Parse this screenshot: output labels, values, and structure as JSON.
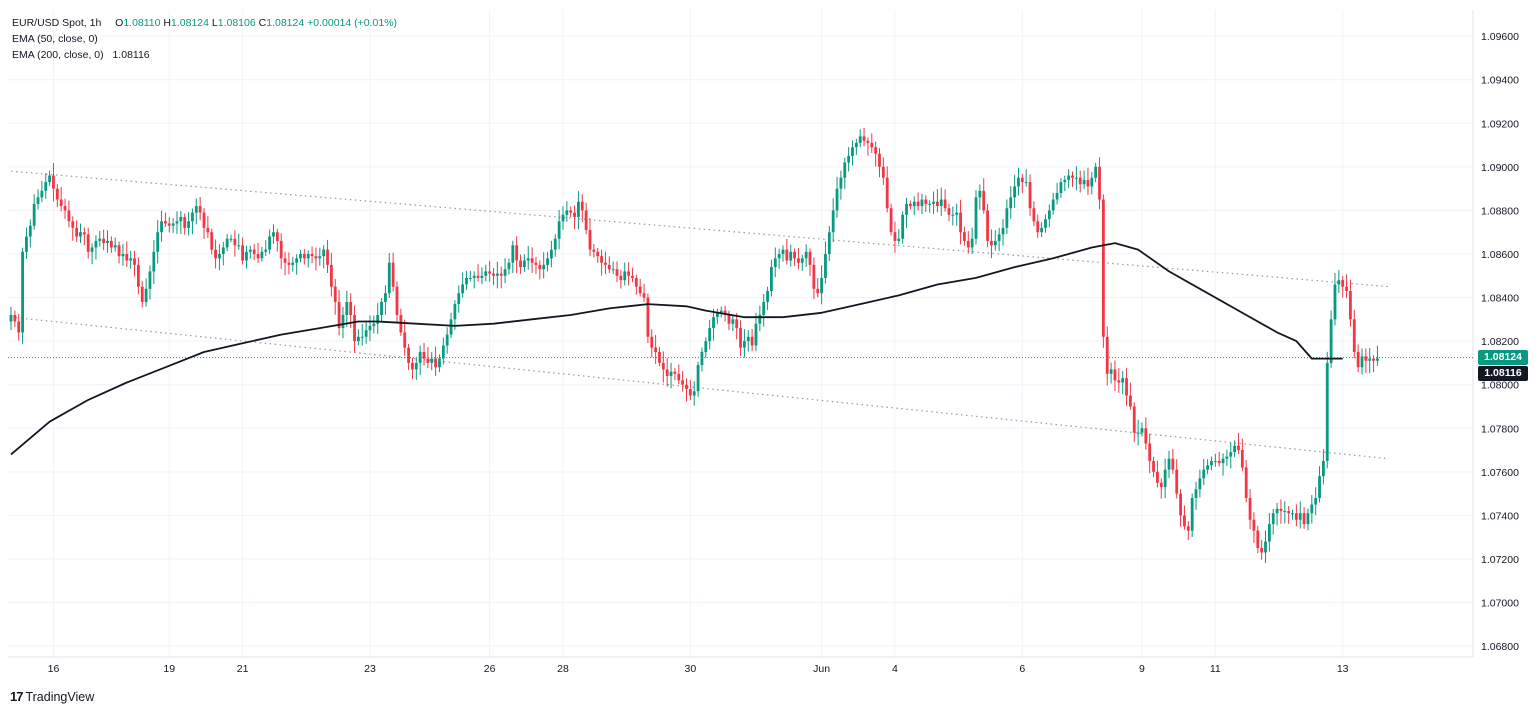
{
  "legend": {
    "symbol": "EUR/USD Spot, 1h",
    "o_label": "O",
    "o_value": "1.08110",
    "h_label": "H",
    "h_value": "1.08124",
    "l_label": "L",
    "l_value": "1.08106",
    "c_label": "C",
    "c_value": "1.08124",
    "change": "+0.00014 (+0.01%)",
    "ema50": "EMA (50, close, 0)",
    "ema200": "EMA (200, close, 0)",
    "ema200_value": "1.08116"
  },
  "price_tags": {
    "last": "1.08124",
    "ema200": "1.08116"
  },
  "brand": {
    "logo": "17",
    "name": "TradingView"
  },
  "colors": {
    "up": "#089981",
    "down": "#f23645",
    "ema": "#131722",
    "grid": "#f0f3fa",
    "last_line": "#089981",
    "channel": "#9598a1"
  },
  "chart_data": {
    "type": "candlestick",
    "title": "EUR/USD Spot, 1h",
    "interval": "1h",
    "grid": true,
    "y_axis": {
      "position": "right",
      "range": [
        1.0675,
        1.0972
      ],
      "ticks": [
        "1.09600",
        "1.09400",
        "1.09200",
        "1.09000",
        "1.08800",
        "1.08600",
        "1.08400",
        "1.08200",
        "1.08000",
        "1.07800",
        "1.07600",
        "1.07400",
        "1.07200",
        "1.07000",
        "1.06800"
      ]
    },
    "x_axis": {
      "ticks": [
        "16",
        "19",
        "21",
        "23",
        "26",
        "28",
        "30",
        "Jun",
        "4",
        "6",
        "9",
        "11",
        "13"
      ],
      "tick_index": [
        11,
        41,
        60,
        93,
        124,
        143,
        176,
        210,
        229,
        262,
        293,
        312,
        345
      ]
    },
    "last_price": 1.08124,
    "ema200_last": 1.08116,
    "channel_lines": [
      {
        "from": [
          0,
          1.0898
        ],
        "to": [
          357,
          1.0845
        ]
      },
      {
        "from": [
          0,
          1.0831
        ],
        "to": [
          357,
          1.0766
        ]
      }
    ],
    "closes": [
      1.0832,
      1.0829,
      1.0824,
      1.0861,
      1.0868,
      1.0873,
      1.0883,
      1.0886,
      1.0889,
      1.0893,
      1.0896,
      1.089,
      1.0885,
      1.0882,
      1.088,
      1.0875,
      1.0872,
      1.0868,
      1.087,
      1.0869,
      1.0861,
      1.0863,
      1.0866,
      1.0867,
      1.0865,
      1.0866,
      1.0863,
      1.0864,
      1.0859,
      1.086,
      1.0857,
      1.0858,
      1.0855,
      1.0845,
      1.0838,
      1.0844,
      1.0852,
      1.0861,
      1.087,
      1.0875,
      1.0874,
      1.0873,
      1.0874,
      1.0875,
      1.0877,
      1.0872,
      1.0875,
      1.0879,
      1.0882,
      1.0879,
      1.0872,
      1.087,
      1.0862,
      1.0858,
      1.086,
      1.0863,
      1.0867,
      1.0867,
      1.0864,
      1.0864,
      1.0857,
      1.0861,
      1.0862,
      1.086,
      1.0858,
      1.0861,
      1.0862,
      1.0868,
      1.087,
      1.0866,
      1.0858,
      1.0856,
      1.0855,
      1.0856,
      1.0858,
      1.086,
      1.0858,
      1.086,
      1.0859,
      1.0858,
      1.0859,
      1.0862,
      1.0855,
      1.0845,
      1.0838,
      1.0826,
      1.0832,
      1.0838,
      1.0832,
      1.082,
      1.0822,
      1.0822,
      1.0825,
      1.0827,
      1.0828,
      1.0832,
      1.0838,
      1.0842,
      1.0856,
      1.0845,
      1.0832,
      1.0824,
      1.0817,
      1.081,
      1.0807,
      1.081,
      1.0815,
      1.0812,
      1.081,
      1.0812,
      1.0808,
      1.0812,
      1.0818,
      1.0823,
      1.083,
      1.0837,
      1.0842,
      1.0846,
      1.0849,
      1.0849,
      1.085,
      1.0849,
      1.085,
      1.0852,
      1.0851,
      1.085,
      1.0851,
      1.085,
      1.0853,
      1.0856,
      1.0864,
      1.0857,
      1.0854,
      1.0857,
      1.0858,
      1.0856,
      1.0855,
      1.0853,
      1.0855,
      1.0858,
      1.0862,
      1.0867,
      1.0875,
      1.0878,
      1.088,
      1.0879,
      1.0877,
      1.0884,
      1.088,
      1.0871,
      1.0862,
      1.0861,
      1.0859,
      1.0856,
      1.0855,
      1.0853,
      1.0853,
      1.085,
      1.0848,
      1.0852,
      1.085,
      1.0849,
      1.0845,
      1.0842,
      1.084,
      1.0822,
      1.0817,
      1.0815,
      1.081,
      1.0807,
      1.0804,
      1.0806,
      1.0805,
      1.0802,
      1.08,
      1.0798,
      1.0795,
      1.0797,
      1.0809,
      1.0815,
      1.082,
      1.0826,
      1.0831,
      1.0833,
      1.0834,
      1.0832,
      1.0828,
      1.083,
      1.0826,
      1.0817,
      1.082,
      1.0822,
      1.0818,
      1.0828,
      1.0832,
      1.0838,
      1.0843,
      1.0854,
      1.0858,
      1.086,
      1.0862,
      1.0857,
      1.0861,
      1.0858,
      1.0856,
      1.0858,
      1.0861,
      1.0855,
      1.0844,
      1.0842,
      1.0849,
      1.086,
      1.087,
      1.088,
      1.089,
      1.0895,
      1.0902,
      1.0905,
      1.0909,
      1.0911,
      1.0914,
      1.0912,
      1.0911,
      1.0909,
      1.0906,
      1.09,
      1.0895,
      1.0881,
      1.087,
      1.0866,
      1.0867,
      1.0878,
      1.0883,
      1.0882,
      1.0884,
      1.0882,
      1.0885,
      1.0883,
      1.0883,
      1.0884,
      1.0882,
      1.0885,
      1.0881,
      1.0878,
      1.0878,
      1.0879,
      1.087,
      1.0866,
      1.0863,
      1.0867,
      1.0886,
      1.0889,
      1.088,
      1.0866,
      1.0864,
      1.0866,
      1.0869,
      1.0872,
      1.0881,
      1.0886,
      1.0891,
      1.0895,
      1.0893,
      1.0893,
      1.0881,
      1.0875,
      1.087,
      1.0872,
      1.0876,
      1.088,
      1.0885,
      1.0888,
      1.0893,
      1.0894,
      1.0896,
      1.0895,
      1.0895,
      1.0892,
      1.0894,
      1.0891,
      1.0895,
      1.09,
      1.0885,
      1.0822,
      1.0805,
      1.0807,
      1.0802,
      1.0801,
      1.0803,
      1.0795,
      1.079,
      1.0778,
      1.0778,
      1.078,
      1.0773,
      1.0765,
      1.076,
      1.0755,
      1.0753,
      1.0761,
      1.0766,
      1.0761,
      1.075,
      1.074,
      1.0735,
      1.0733,
      1.0748,
      1.0752,
      1.0757,
      1.0761,
      1.0763,
      1.0765,
      1.0765,
      1.0764,
      1.0766,
      1.0767,
      1.0769,
      1.0772,
      1.077,
      1.0762,
      1.0748,
      1.0738,
      1.0733,
      1.0725,
      1.0723,
      1.0728,
      1.0736,
      1.0741,
      1.0743,
      1.0742,
      1.0742,
      1.0741,
      1.0741,
      1.0738,
      1.0741,
      1.0736,
      1.0741,
      1.0745,
      1.0748,
      1.0758,
      1.0765,
      1.081,
      1.083,
      1.0846,
      1.0848,
      1.0845,
      1.0843,
      1.083,
      1.0815,
      1.0808,
      1.0813,
      1.0811,
      1.0812,
      1.0811,
      1.0812
    ],
    "ema200": [
      [
        0,
        1.0768
      ],
      [
        10,
        1.0783
      ],
      [
        20,
        1.0793
      ],
      [
        30,
        1.0801
      ],
      [
        40,
        1.0808
      ],
      [
        50,
        1.0815
      ],
      [
        60,
        1.0819
      ],
      [
        70,
        1.0823
      ],
      [
        80,
        1.0826
      ],
      [
        90,
        1.0829
      ],
      [
        95,
        1.0829
      ],
      [
        105,
        1.0828
      ],
      [
        115,
        1.0827
      ],
      [
        125,
        1.0828
      ],
      [
        135,
        1.083
      ],
      [
        145,
        1.0832
      ],
      [
        155,
        1.0835
      ],
      [
        165,
        1.0837
      ],
      [
        175,
        1.0836
      ],
      [
        180,
        1.0834
      ],
      [
        190,
        1.0831
      ],
      [
        200,
        1.0831
      ],
      [
        210,
        1.0833
      ],
      [
        220,
        1.0837
      ],
      [
        230,
        1.0841
      ],
      [
        240,
        1.0846
      ],
      [
        250,
        1.0849
      ],
      [
        260,
        1.0854
      ],
      [
        270,
        1.0858
      ],
      [
        280,
        1.0863
      ],
      [
        286,
        1.0865
      ],
      [
        292,
        1.0862
      ],
      [
        300,
        1.0852
      ],
      [
        310,
        1.0842
      ],
      [
        320,
        1.0832
      ],
      [
        328,
        1.0824
      ],
      [
        333,
        1.082
      ],
      [
        337,
        1.0812
      ],
      [
        342,
        1.0812
      ],
      [
        345,
        1.0812
      ]
    ]
  }
}
